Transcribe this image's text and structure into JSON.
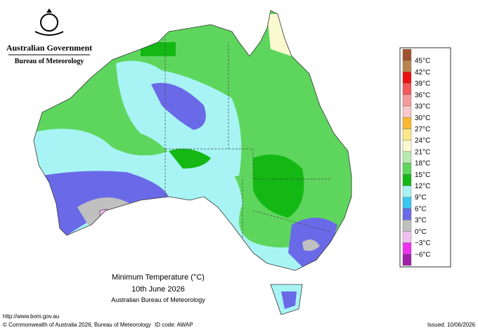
{
  "header": {
    "government": "Australian Government",
    "agency": "Bureau of Meteorology"
  },
  "map": {
    "title": "Minimum Temperature (°C)",
    "date": "10th June 2026",
    "source": "Australian Bureau of Meteorology"
  },
  "legend": {
    "colors": [
      "#a0522d",
      "#b8864b",
      "#ee1111",
      "#f45a5a",
      "#f49a9a",
      "#f8c8c8",
      "#f8b830",
      "#fbe88a",
      "#fafad0",
      "#b8eab0",
      "#5ed65e",
      "#14b814",
      "#a8f4f4",
      "#38c8f0",
      "#6a6ae8",
      "#c0c0c0",
      "#f0c0f0",
      "#f030f0",
      "#a020a8"
    ],
    "labels": [
      "45°C",
      "42°C",
      "39°C",
      "36°C",
      "33°C",
      "30°C",
      "27°C",
      "24°C",
      "21°C",
      "18°C",
      "15°C",
      "12°C",
      "9°C",
      "6°C",
      "3°C",
      "0°C",
      "−3°C",
      "−6°C"
    ]
  },
  "footer": {
    "url": "http://www.bom.gov.au",
    "copyright": "© Commonwealth of Australia 2026, Bureau of Meteorology",
    "id_code": "ID code: AWAP",
    "issued": "Issued: 10/06/2026"
  }
}
